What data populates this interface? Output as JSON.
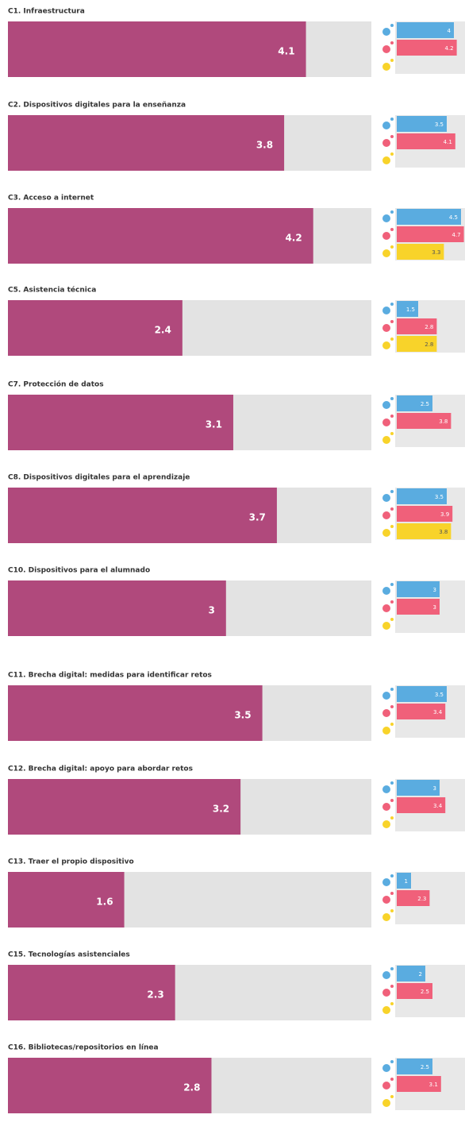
{
  "chart_data": {
    "type": "bar",
    "categories": [
      "C1. Infraestructura",
      "C2. Dispositivos digitales para la enseñanza",
      "C3. Acceso a internet",
      "C5. Asistencia técnica",
      "C7. Protección de datos",
      "C8. Dispositivos digitales para el aprendizaje",
      "C10. Dispositivos para el alumnado",
      "C11. Brecha digital: medidas para identificar retos",
      "C12. Brecha digital: apoyo para abordar retos",
      "C13. Traer el propio dispositivo",
      "C15. Tecnologías asistenciales",
      "C16. Bibliotecas/repositorios en línea"
    ],
    "xlim": [
      0,
      5
    ],
    "series": [
      {
        "color": "#b0497c",
        "values": [
          4.1,
          3.8,
          4.2,
          2.4,
          3.1,
          3.7,
          3,
          3.5,
          3.2,
          1.6,
          2.3,
          2.8
        ]
      },
      {
        "color": "#5aace0",
        "values": [
          4,
          3.5,
          4.5,
          1.5,
          2.5,
          3.5,
          3,
          3.5,
          3,
          1,
          2,
          2.5
        ]
      },
      {
        "color": "#f0607a",
        "values": [
          4.2,
          4.1,
          4.7,
          2.8,
          3.8,
          3.9,
          3,
          3.4,
          3.4,
          2.3,
          2.5,
          3.1
        ]
      },
      {
        "color": "#f8d32a",
        "values": [
          null,
          null,
          3.3,
          2.8,
          null,
          3.8,
          null,
          null,
          null,
          null,
          null,
          null
        ]
      }
    ]
  }
}
